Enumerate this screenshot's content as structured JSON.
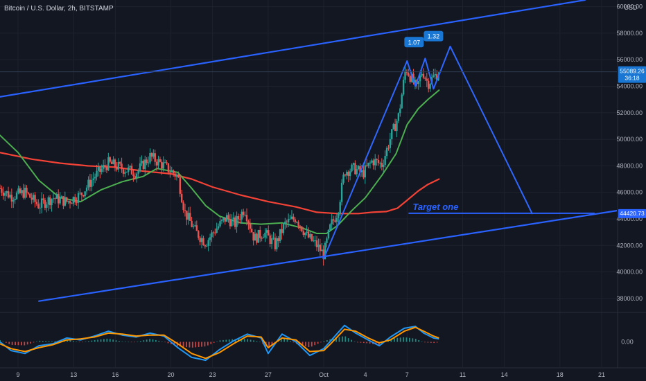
{
  "symbol_title": "Bitcoin / U.S. Dollar, 2h, BITSTAMP",
  "currency": "USD",
  "colors": {
    "background": "#131722",
    "grid": "#1e222d",
    "axis_text": "#b2b5be",
    "channel": "#2962ff",
    "pattern": "#2f67ff",
    "ma_fast": "#4caf50",
    "ma_slow": "#f44336",
    "up_candle": "#26a69a",
    "down_candle": "#ef5350",
    "macd_blue": "#2196f3",
    "macd_orange": "#ff9800",
    "price_label": "#1976d2",
    "target_label": "#2962ff"
  },
  "y_axis_labels": [
    "60000.00",
    "58000.00",
    "56000.00",
    "54000.00",
    "52000.00",
    "50000.00",
    "48000.00",
    "46000.00",
    "44000.00",
    "42000.00",
    "40000.00",
    "38000.00"
  ],
  "x_axis_labels": [
    "9",
    "13",
    "16",
    "20",
    "23",
    "27",
    "Oct",
    "4",
    "7",
    "11",
    "14",
    "18",
    "21"
  ],
  "indicator_axis_label": "0.00",
  "current_price": {
    "value": "55089.26",
    "countdown": "36:18"
  },
  "target": {
    "text": "Target one",
    "price": "44420.73",
    "value": 44420.73
  },
  "ratios": [
    "1.07",
    "1.32"
  ],
  "chart_data": {
    "type": "candlestick",
    "title": "Bitcoin / U.S. Dollar, 2h, BITSTAMP",
    "ylim": [
      37000,
      60500
    ],
    "x_range_days": [
      7.7,
      52.1
    ],
    "y_ticks": [
      38000,
      40000,
      42000,
      44000,
      46000,
      48000,
      50000,
      52000,
      54000,
      56000,
      58000,
      60000
    ],
    "x_ticks": [
      {
        "label": "9",
        "day": 9
      },
      {
        "label": "13",
        "day": 13
      },
      {
        "label": "16",
        "day": 16
      },
      {
        "label": "20",
        "day": 20
      },
      {
        "label": "23",
        "day": 23
      },
      {
        "label": "27",
        "day": 27
      },
      {
        "label": "Oct",
        "day": 31
      },
      {
        "label": "4",
        "day": 34
      },
      {
        "label": "7",
        "day": 37
      },
      {
        "label": "11",
        "day": 41
      },
      {
        "label": "14",
        "day": 44
      },
      {
        "label": "18",
        "day": 48
      },
      {
        "label": "21",
        "day": 51
      }
    ],
    "close_path": [
      [
        7.7,
        46300
      ],
      [
        8.5,
        45700
      ],
      [
        9.5,
        46000
      ],
      [
        10.5,
        45000
      ],
      [
        11.5,
        45600
      ],
      [
        12.5,
        45300
      ],
      [
        13.5,
        45800
      ],
      [
        14.5,
        47200
      ],
      [
        15.5,
        48200
      ],
      [
        16.5,
        47800
      ],
      [
        17.5,
        47500
      ],
      [
        18.5,
        48700
      ],
      [
        19.5,
        48000
      ],
      [
        20.5,
        47200
      ],
      [
        21.0,
        44500
      ],
      [
        21.8,
        43000
      ],
      [
        22.5,
        42200
      ],
      [
        23.2,
        43200
      ],
      [
        24.0,
        44100
      ],
      [
        24.6,
        43600
      ],
      [
        25.3,
        44800
      ],
      [
        26.0,
        42500
      ],
      [
        26.7,
        43000
      ],
      [
        27.5,
        42000
      ],
      [
        28.2,
        43600
      ],
      [
        29.0,
        44100
      ],
      [
        29.8,
        42700
      ],
      [
        30.5,
        42000
      ],
      [
        31.0,
        41300
      ],
      [
        31.5,
        43500
      ],
      [
        32.0,
        44500
      ],
      [
        32.5,
        47600
      ],
      [
        33.2,
        47800
      ],
      [
        33.8,
        47400
      ],
      [
        34.5,
        48400
      ],
      [
        35.2,
        48100
      ],
      [
        35.8,
        50100
      ],
      [
        36.4,
        51800
      ],
      [
        36.9,
        55400
      ],
      [
        37.3,
        54600
      ],
      [
        37.7,
        53800
      ],
      [
        38.1,
        55200
      ],
      [
        38.5,
        54200
      ],
      [
        38.9,
        54700
      ],
      [
        39.3,
        55000
      ]
    ],
    "channel_upper": [
      [
        7.7,
        53200
      ],
      [
        49.8,
        60500
      ]
    ],
    "channel_lower": [
      [
        10.5,
        37800
      ],
      [
        52.1,
        44620
      ]
    ],
    "pattern_lines": [
      [
        [
          31.0,
          41000
        ],
        [
          37.0,
          55900
        ]
      ],
      [
        [
          37.0,
          55900
        ],
        [
          37.6,
          54000
        ],
        [
          38.3,
          56100
        ],
        [
          38.9,
          53800
        ],
        [
          40.1,
          57000
        ]
      ],
      [
        [
          40.1,
          57000
        ],
        [
          46.0,
          44400
        ]
      ]
    ],
    "target_line": {
      "from_day": 37.1,
      "to_day": 50.5,
      "value": 44420.73
    },
    "ma_fast": [
      [
        7.7,
        50300
      ],
      [
        9.0,
        49000
      ],
      [
        10.5,
        46900
      ],
      [
        12.0,
        45600
      ],
      [
        13.5,
        45300
      ],
      [
        15.0,
        46200
      ],
      [
        16.5,
        46800
      ],
      [
        18.0,
        47200
      ],
      [
        19.0,
        47800
      ],
      [
        20.5,
        47500
      ],
      [
        21.5,
        46300
      ],
      [
        22.5,
        45000
      ],
      [
        23.5,
        44200
      ],
      [
        25.0,
        43700
      ],
      [
        26.5,
        43600
      ],
      [
        28.0,
        43700
      ],
      [
        29.5,
        43300
      ],
      [
        30.5,
        42900
      ],
      [
        31.2,
        42900
      ],
      [
        32.0,
        43500
      ],
      [
        33.0,
        44600
      ],
      [
        34.0,
        45600
      ],
      [
        35.2,
        47300
      ],
      [
        36.2,
        48900
      ],
      [
        37.0,
        51100
      ],
      [
        37.8,
        52300
      ],
      [
        38.5,
        53000
      ],
      [
        39.3,
        53700
      ]
    ],
    "ma_slow": [
      [
        7.7,
        49000
      ],
      [
        10.0,
        48500
      ],
      [
        12.0,
        48200
      ],
      [
        14.0,
        48000
      ],
      [
        16.0,
        47900
      ],
      [
        18.0,
        47600
      ],
      [
        20.0,
        47400
      ],
      [
        21.5,
        47000
      ],
      [
        23.0,
        46400
      ],
      [
        25.0,
        45800
      ],
      [
        27.0,
        45300
      ],
      [
        29.0,
        44900
      ],
      [
        30.5,
        44500
      ],
      [
        32.0,
        44400
      ],
      [
        33.5,
        44400
      ],
      [
        34.5,
        44500
      ],
      [
        35.5,
        44550
      ],
      [
        36.3,
        44800
      ],
      [
        37.0,
        45400
      ],
      [
        37.8,
        46100
      ],
      [
        38.5,
        46600
      ],
      [
        39.3,
        47000
      ]
    ],
    "indicator": {
      "type": "macd",
      "ylim": [
        -1,
        1
      ],
      "zero_label": "0.00",
      "line_a": [
        [
          7.7,
          0.0
        ],
        [
          8.5,
          -0.45
        ],
        [
          9.5,
          -0.6
        ],
        [
          10.5,
          -0.2
        ],
        [
          11.5,
          -0.1
        ],
        [
          12.5,
          0.2
        ],
        [
          13.5,
          0.1
        ],
        [
          14.5,
          0.3
        ],
        [
          15.5,
          0.55
        ],
        [
          16.5,
          0.35
        ],
        [
          17.5,
          0.25
        ],
        [
          18.5,
          0.45
        ],
        [
          19.5,
          0.3
        ],
        [
          20.5,
          -0.3
        ],
        [
          21.5,
          -0.8
        ],
        [
          22.5,
          -0.95
        ],
        [
          23.5,
          -0.4
        ],
        [
          24.5,
          0.05
        ],
        [
          25.5,
          0.4
        ],
        [
          26.5,
          0.2
        ],
        [
          27.0,
          -0.6
        ],
        [
          28.0,
          0.4
        ],
        [
          29.0,
          0.0
        ],
        [
          30.0,
          -0.7
        ],
        [
          31.0,
          -0.35
        ],
        [
          31.5,
          0.05
        ],
        [
          32.5,
          0.85
        ],
        [
          33.3,
          0.45
        ],
        [
          34.2,
          0.1
        ],
        [
          35.0,
          -0.2
        ],
        [
          35.8,
          0.25
        ],
        [
          36.8,
          0.7
        ],
        [
          37.6,
          0.8
        ],
        [
          38.2,
          0.45
        ],
        [
          38.9,
          0.2
        ],
        [
          39.3,
          0.15
        ]
      ],
      "line_b": [
        [
          7.7,
          -0.1
        ],
        [
          8.5,
          -0.35
        ],
        [
          9.5,
          -0.5
        ],
        [
          10.5,
          -0.3
        ],
        [
          11.5,
          -0.15
        ],
        [
          12.5,
          0.1
        ],
        [
          13.5,
          0.15
        ],
        [
          14.5,
          0.25
        ],
        [
          15.5,
          0.45
        ],
        [
          16.5,
          0.4
        ],
        [
          17.5,
          0.3
        ],
        [
          18.5,
          0.35
        ],
        [
          19.5,
          0.35
        ],
        [
          20.5,
          -0.1
        ],
        [
          21.5,
          -0.6
        ],
        [
          22.5,
          -0.85
        ],
        [
          23.5,
          -0.55
        ],
        [
          24.5,
          -0.1
        ],
        [
          25.5,
          0.3
        ],
        [
          26.5,
          0.25
        ],
        [
          27.0,
          -0.3
        ],
        [
          28.0,
          0.2
        ],
        [
          29.0,
          0.1
        ],
        [
          30.0,
          -0.5
        ],
        [
          31.0,
          -0.45
        ],
        [
          31.5,
          -0.1
        ],
        [
          32.5,
          0.65
        ],
        [
          33.3,
          0.55
        ],
        [
          34.2,
          0.2
        ],
        [
          35.0,
          -0.05
        ],
        [
          35.8,
          0.1
        ],
        [
          36.8,
          0.55
        ],
        [
          37.6,
          0.75
        ],
        [
          38.2,
          0.55
        ],
        [
          38.9,
          0.3
        ],
        [
          39.3,
          0.2
        ]
      ]
    }
  }
}
